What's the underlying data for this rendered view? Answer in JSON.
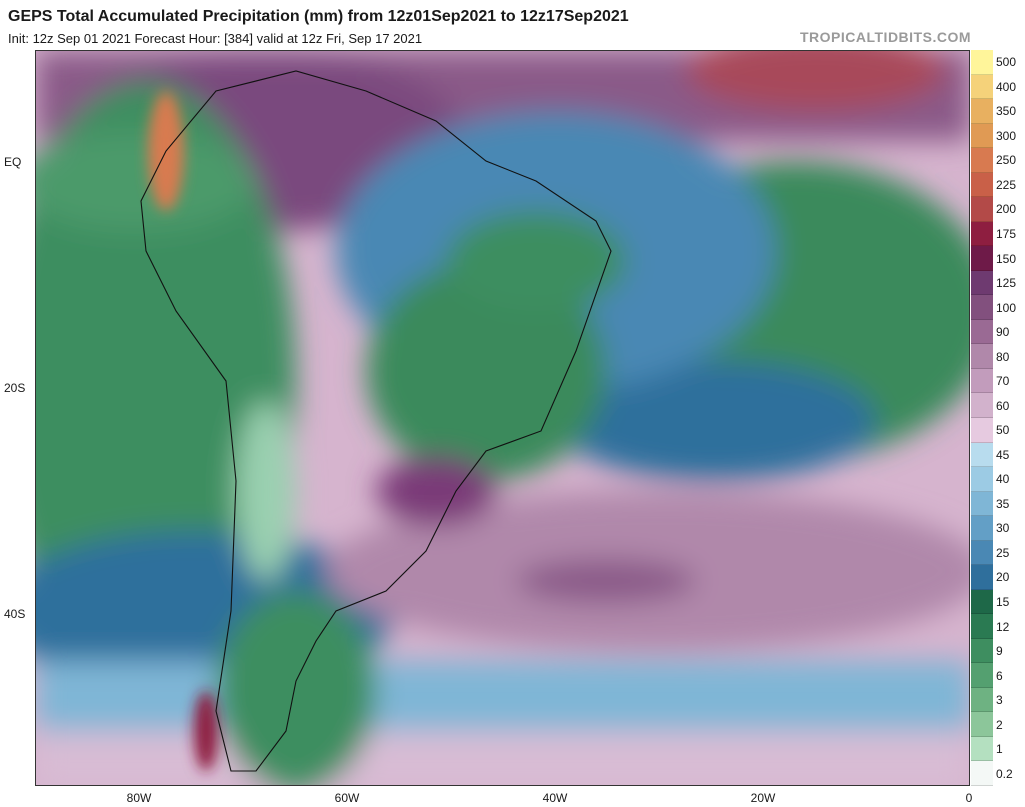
{
  "header": {
    "title": "GEPS Total Accumulated Precipitation (mm) from 12z01Sep2021 to 12z17Sep2021",
    "subtitle": "Init: 12z Sep 01 2021   Forecast Hour: [384]   valid at 12z Fri, Sep 17 2021",
    "watermark": "TROPICALTIDBITS.COM"
  },
  "axes": {
    "lat_labels": [
      "EQ",
      "20S",
      "40S"
    ],
    "lon_labels": [
      "80W",
      "60W",
      "40W",
      "20W",
      "0"
    ]
  },
  "colorbar": {
    "labels": [
      "500",
      "400",
      "350",
      "300",
      "250",
      "225",
      "200",
      "175",
      "150",
      "125",
      "100",
      "90",
      "80",
      "70",
      "60",
      "50",
      "45",
      "40",
      "35",
      "30",
      "25",
      "20",
      "15",
      "12",
      "9",
      "6",
      "3",
      "2",
      "1",
      "0.2"
    ],
    "colors": [
      "#fff59a",
      "#f5d27a",
      "#e8b060",
      "#e09a54",
      "#d87a50",
      "#c96048",
      "#b34a48",
      "#8e1e40",
      "#6e1a48",
      "#6e3a70",
      "#82507e",
      "#9a6a94",
      "#b088aa",
      "#c29cbc",
      "#d2b2cc",
      "#e6cae0",
      "#b8dcee",
      "#9ccbe4",
      "#7fb6d6",
      "#639fc6",
      "#4a88b4",
      "#2f6f9c",
      "#1e6848",
      "#2a7a52",
      "#3e8e60",
      "#54a070",
      "#6eb282",
      "#8cc69a",
      "#b4e0c0",
      "#f4f8f6"
    ]
  }
}
